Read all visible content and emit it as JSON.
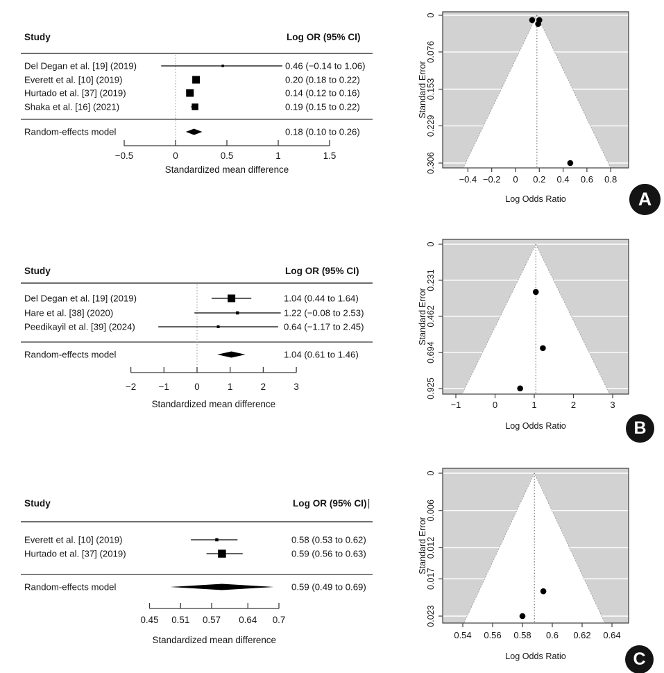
{
  "figure": {
    "description": "Meta-analysis forest plots with corresponding funnel plots",
    "colors": {
      "funnel_shade": "#d2d2d2",
      "text": "#161616",
      "rule": "#6e6e6e",
      "accent": "#000000"
    }
  },
  "chart_data": [
    {
      "badge": "A",
      "forest": {
        "type": "forest",
        "columns": {
          "study": "Study",
          "effect": "Log OR (95% CI)"
        },
        "studies": [
          {
            "label": "Del Degan et al. [19] (2019)",
            "est": 0.46,
            "lo": -0.14,
            "hi": 1.06,
            "ci_text": "0.46 (−0.14 to 1.06)",
            "box": 3.5
          },
          {
            "label": "Everett et al. [10] (2019)",
            "est": 0.2,
            "lo": 0.18,
            "hi": 0.22,
            "ci_text": "0.20 (0.18 to 0.22)",
            "box": 11
          },
          {
            "label": "Hurtado et al. [37] (2019)",
            "est": 0.14,
            "lo": 0.12,
            "hi": 0.16,
            "ci_text": "0.14 (0.12 to 0.16)",
            "box": 11
          },
          {
            "label": "Shaka et al. [16] (2021)",
            "est": 0.19,
            "lo": 0.15,
            "hi": 0.22,
            "ci_text": "0.19 (0.15 to 0.22)",
            "box": 9.5
          }
        ],
        "summary": {
          "label": "Random-effects model",
          "est": 0.18,
          "lo": 0.1,
          "hi": 0.26,
          "ci_text": "0.18 (0.10 to 0.26)"
        },
        "xticks": [
          -0.5,
          0,
          0.5,
          1,
          1.5
        ],
        "zero_line": 0,
        "xlabel": "Standardized mean difference"
      },
      "funnel": {
        "type": "scatter",
        "xlabel": "Log Odds Ratio",
        "ylabel": "Standard Error",
        "xticks": [
          -0.4,
          -0.2,
          0,
          0.2,
          0.4,
          0.6,
          0.8
        ],
        "yticks": [
          0,
          0.076,
          0.153,
          0.229,
          0.306
        ],
        "center": 0.18,
        "points": [
          {
            "x": 0.2,
            "se": 0.01
          },
          {
            "x": 0.14,
            "se": 0.01
          },
          {
            "x": 0.19,
            "se": 0.018
          },
          {
            "x": 0.46,
            "se": 0.306
          }
        ]
      }
    },
    {
      "badge": "B",
      "forest": {
        "type": "forest",
        "columns": {
          "study": "Study",
          "effect": "Log OR (95% CI)"
        },
        "studies": [
          {
            "label": "Del Degan et al. [19] (2019)",
            "est": 1.04,
            "lo": 0.44,
            "hi": 1.64,
            "ci_text": "1.04 (0.44 to 1.64)",
            "box": 11
          },
          {
            "label": "Hare et al. [38] (2020)",
            "est": 1.22,
            "lo": -0.08,
            "hi": 2.53,
            "ci_text": "1.22 (−0.08 to 2.53)",
            "box": 4.5
          },
          {
            "label": "Peedikayil et al. [39] (2024)",
            "est": 0.64,
            "lo": -1.17,
            "hi": 2.45,
            "ci_text": "0.64 (−1.17 to 2.45)",
            "box": 4
          }
        ],
        "summary": {
          "label": "Random-effects model",
          "est": 1.04,
          "lo": 0.61,
          "hi": 1.46,
          "ci_text": "1.04 (0.61 to 1.46)"
        },
        "xticks": [
          -2,
          -1,
          0,
          1,
          2,
          3
        ],
        "zero_line": 0,
        "xlabel": "Standardized mean difference"
      },
      "funnel": {
        "type": "scatter",
        "xlabel": "Log Odds Ratio",
        "ylabel": "Standard Error",
        "xticks": [
          -1,
          0,
          1,
          2,
          3
        ],
        "yticks": [
          0,
          0.231,
          0.462,
          0.694,
          0.925
        ],
        "center": 1.04,
        "points": [
          {
            "x": 1.04,
            "se": 0.306
          },
          {
            "x": 1.22,
            "se": 0.666
          },
          {
            "x": 0.64,
            "se": 0.924
          }
        ]
      }
    },
    {
      "badge": "C",
      "forest": {
        "type": "forest",
        "columns": {
          "study": "Study",
          "effect": "Log OR (95% CI)"
        },
        "caret": true,
        "studies": [
          {
            "label": "Everett et al. [10] (2019)",
            "est": 0.58,
            "lo": 0.53,
            "hi": 0.62,
            "ci_text": "0.58 (0.53 to 0.62)",
            "box": 4.5
          },
          {
            "label": "Hurtado et al. [37] (2019)",
            "est": 0.59,
            "lo": 0.56,
            "hi": 0.63,
            "ci_text": "0.59 (0.56 to 0.63)",
            "box": 11.5
          }
        ],
        "summary": {
          "label": "Random-effects model",
          "est": 0.59,
          "lo": 0.49,
          "hi": 0.69,
          "ci_text": "0.59 (0.49 to 0.69)"
        },
        "xticks": [
          0.45,
          0.51,
          0.57,
          0.64,
          0.7
        ],
        "zero_line": null,
        "xlabel": "Standardized mean difference"
      },
      "funnel": {
        "type": "scatter",
        "xlabel": "Log Odds Ratio",
        "ylabel": "Standard Error",
        "xticks": [
          0.54,
          0.56,
          0.58,
          0.6,
          0.62,
          0.64
        ],
        "yticks": [
          0,
          0.006,
          0.012,
          0.017,
          0.023
        ],
        "center": 0.588,
        "points": [
          {
            "x": 0.58,
            "se": 0.023
          },
          {
            "x": 0.594,
            "se": 0.019
          }
        ]
      }
    }
  ]
}
